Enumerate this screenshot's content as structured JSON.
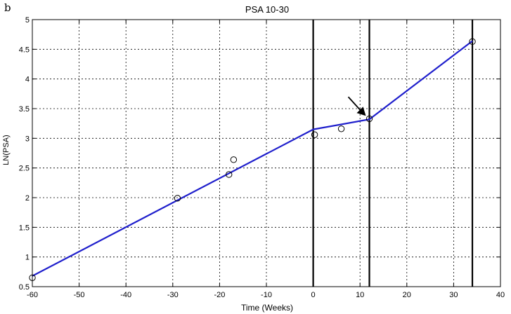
{
  "panel_letter": "b",
  "chart_data": {
    "type": "line",
    "title": "PSA 10-30",
    "xlabel": "Time (Weeks)",
    "ylabel": "LN(PSA)",
    "xlim": [
      -60,
      40
    ],
    "ylim": [
      0.5,
      5
    ],
    "xticks": [
      -60,
      -50,
      -40,
      -30,
      -20,
      -10,
      0,
      10,
      20,
      30,
      40
    ],
    "yticks": [
      0.5,
      1,
      1.5,
      2,
      2.5,
      3,
      3.5,
      4,
      4.5,
      5
    ],
    "xtick_labels": [
      "-60",
      "-50",
      "-40",
      "-30",
      "-20",
      "-10",
      "0",
      "10",
      "20",
      "30",
      "40"
    ],
    "ytick_labels": [
      "0.5",
      "1",
      "1.5",
      "2",
      "2.5",
      "3",
      "3.5",
      "4",
      "4.5",
      "5"
    ],
    "grid": true,
    "series": [
      {
        "kind": "line",
        "color": "#1f1fcc",
        "x": [
          -60,
          0,
          12,
          34
        ],
        "y": [
          0.68,
          3.15,
          3.32,
          4.64
        ]
      },
      {
        "kind": "scatter",
        "marker": "circle-open",
        "color": "#000000",
        "x": [
          -60,
          -29,
          -18,
          -17,
          0.3,
          6,
          12,
          34
        ],
        "y": [
          0.65,
          1.99,
          2.39,
          2.64,
          3.06,
          3.16,
          3.33,
          4.63
        ]
      }
    ],
    "vertical_lines": [
      0,
      12,
      34
    ],
    "annotations": [
      {
        "type": "arrow",
        "x": 12,
        "y": 3.32,
        "color": "#000000"
      }
    ]
  }
}
